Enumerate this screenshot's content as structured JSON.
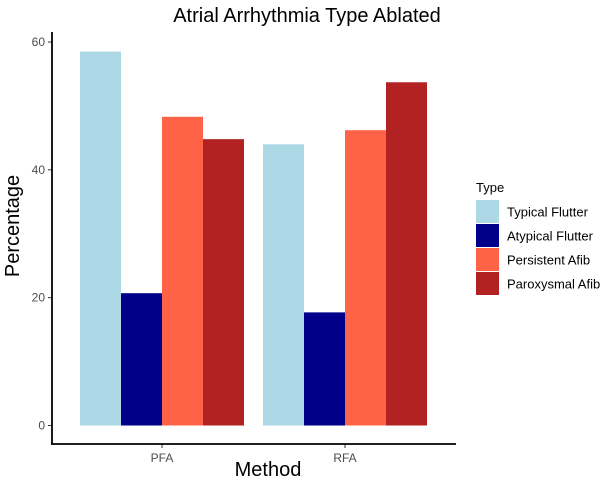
{
  "chart_data": {
    "type": "bar",
    "title": "Atrial Arrhythmia Type Ablated",
    "xlabel": "Method",
    "ylabel": "Percentage",
    "categories": [
      "PFA",
      "RFA"
    ],
    "series": [
      {
        "name": "Typical Flutter",
        "color": "#add8e6",
        "values": [
          58.5,
          44.0
        ]
      },
      {
        "name": "Atypical Flutter",
        "color": "#00008b",
        "values": [
          20.7,
          17.7
        ]
      },
      {
        "name": "Persistent Afib",
        "color": "#ff6347",
        "values": [
          48.3,
          46.2
        ]
      },
      {
        "name": "Paroxysmal Afib",
        "color": "#b22222",
        "values": [
          44.8,
          53.7
        ]
      }
    ],
    "ylim": [
      0,
      62.5
    ],
    "yticks": [
      "0",
      "20",
      "40",
      "60"
    ],
    "ytick_values": [
      0,
      20,
      40,
      60
    ],
    "legend": {
      "title": "Type",
      "position": "right"
    },
    "grid": false
  }
}
